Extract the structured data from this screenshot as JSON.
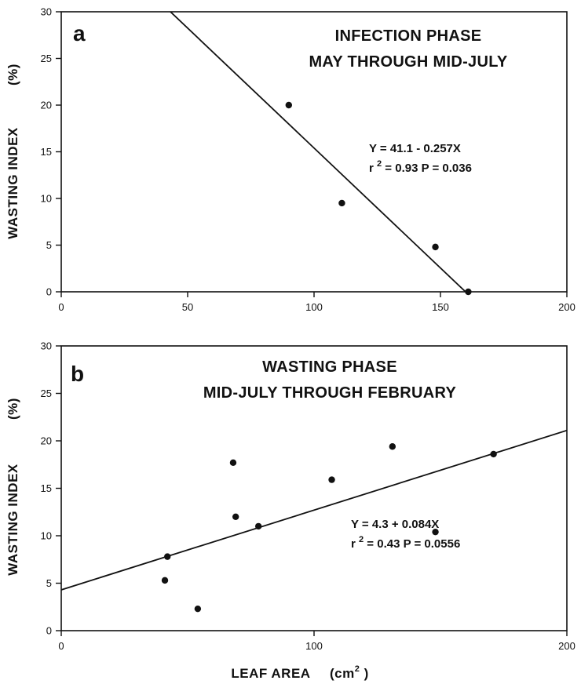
{
  "chart_data": [
    {
      "type": "scatter",
      "panel_letter": "a",
      "title_lines": [
        "INFECTION PHASE",
        "MAY THROUGH MID-JULY"
      ],
      "ylabel": "WASTING INDEX",
      "ylabel_unit": "(%)",
      "xlim": [
        0,
        200
      ],
      "ylim": [
        0,
        30
      ],
      "xticks": [
        0,
        50,
        100,
        150,
        200
      ],
      "yticks": [
        0,
        5,
        10,
        15,
        20,
        25,
        30
      ],
      "points": [
        [
          90,
          20
        ],
        [
          111,
          9.5
        ],
        [
          148,
          4.8
        ],
        [
          161,
          0
        ]
      ],
      "fit": {
        "intercept": 41.1,
        "slope": -0.257
      },
      "annotation": {
        "line1": "Y  =  41.1  -  0.257X",
        "r2_prefix": "r",
        "r2_sup": "2",
        "r2_rest": " =  0.93      P  =  0.036"
      }
    },
    {
      "type": "scatter",
      "panel_letter": "b",
      "title_lines": [
        "WASTING PHASE",
        "MID-JULY THROUGH FEBRUARY"
      ],
      "ylabel": "WASTING INDEX",
      "ylabel_unit": "(%)",
      "xlabel": "LEAF AREA",
      "xlabel_unit_prefix": "(cm",
      "xlabel_unit_sup": "2",
      "xlabel_unit_suffix": " )",
      "xlim": [
        0,
        200
      ],
      "ylim": [
        0,
        30
      ],
      "xticks": [
        0,
        100,
        200
      ],
      "yticks": [
        0,
        5,
        10,
        15,
        20,
        25,
        30
      ],
      "points": [
        [
          41,
          5.3
        ],
        [
          42,
          7.8
        ],
        [
          54,
          2.3
        ],
        [
          68,
          17.7
        ],
        [
          69,
          12
        ],
        [
          78,
          11
        ],
        [
          107,
          15.9
        ],
        [
          131,
          19.4
        ],
        [
          148,
          10.4
        ],
        [
          171,
          18.6
        ]
      ],
      "fit": {
        "intercept": 4.3,
        "slope": 0.084
      },
      "annotation": {
        "line1": "Y  =  4.3  +  0.084X",
        "r2_prefix": "r",
        "r2_sup": "2",
        "r2_rest": " =  0.43     P  =  0.0556"
      }
    }
  ]
}
